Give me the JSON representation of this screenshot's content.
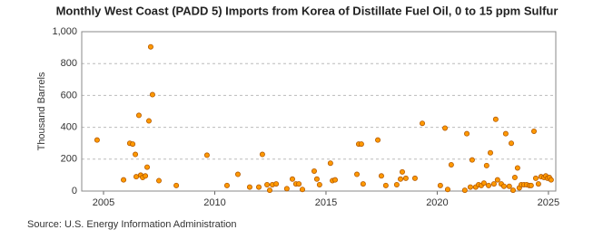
{
  "chart_data": {
    "type": "scatter",
    "title": "Monthly West Coast (PADD 5) Imports from Korea of Distillate Fuel Oil, 0 to 15 ppm Sulfur",
    "ylabel": "Thousand Barrels",
    "source": "Source: U.S. Energy Information Administration",
    "color": "#ff9900",
    "grid": true,
    "xlim": [
      2004.02,
      2025.33
    ],
    "xticks": [
      2005,
      2010,
      2015,
      2020,
      2025
    ],
    "ylim": [
      0,
      1000
    ],
    "yticks": [
      0,
      200,
      400,
      600,
      800,
      {
        "value": 1000,
        "label": "1,000"
      }
    ],
    "x": [
      2004.71,
      2005.9,
      2006.18,
      2006.31,
      2006.43,
      2006.47,
      2006.59,
      2006.67,
      2006.76,
      2006.88,
      2006.96,
      2007.04,
      2007.12,
      2007.2,
      2007.49,
      2008.27,
      2009.65,
      2010.55,
      2011.04,
      2011.57,
      2011.98,
      2012.14,
      2012.35,
      2012.47,
      2012.59,
      2012.76,
      2013.24,
      2013.49,
      2013.65,
      2013.78,
      2013.94,
      2014.47,
      2014.59,
      2014.71,
      2015.2,
      2015.29,
      2015.41,
      2016.39,
      2016.47,
      2016.59,
      2016.67,
      2017.33,
      2017.49,
      2017.69,
      2018.18,
      2018.35,
      2018.43,
      2018.59,
      2019.0,
      2019.33,
      2020.14,
      2020.35,
      2020.47,
      2020.63,
      2021.24,
      2021.33,
      2021.49,
      2021.57,
      2021.73,
      2021.86,
      2021.98,
      2022.1,
      2022.22,
      2022.31,
      2022.39,
      2022.55,
      2022.63,
      2022.71,
      2022.88,
      2023.0,
      2023.08,
      2023.24,
      2023.33,
      2023.41,
      2023.49,
      2023.61,
      2023.69,
      2023.78,
      2023.9,
      2024.02,
      2024.14,
      2024.22,
      2024.35,
      2024.43,
      2024.55,
      2024.67,
      2024.8,
      2024.88,
      2024.96,
      2025.04,
      2025.12
    ],
    "values": [
      320,
      70,
      300,
      295,
      230,
      90,
      475,
      100,
      85,
      95,
      150,
      440,
      905,
      605,
      65,
      35,
      225,
      35,
      105,
      25,
      25,
      230,
      40,
      5,
      40,
      45,
      15,
      75,
      45,
      45,
      10,
      125,
      75,
      40,
      175,
      65,
      70,
      105,
      295,
      295,
      45,
      320,
      95,
      35,
      40,
      75,
      120,
      80,
      80,
      425,
      35,
      395,
      10,
      165,
      5,
      360,
      25,
      195,
      25,
      40,
      35,
      50,
      160,
      35,
      240,
      45,
      450,
      70,
      45,
      30,
      360,
      30,
      300,
      5,
      85,
      145,
      20,
      40,
      40,
      40,
      35,
      35,
      375,
      80,
      45,
      90,
      85,
      95,
      80,
      85,
      70
    ]
  }
}
